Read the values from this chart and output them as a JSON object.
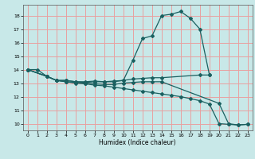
{
  "title": "",
  "xlabel": "Humidex (Indice chaleur)",
  "bg_color": "#c8e8e8",
  "grid_color": "#e8a0a0",
  "line_color": "#1a6060",
  "xlim": [
    -0.5,
    23.5
  ],
  "ylim": [
    9.5,
    18.8
  ],
  "xticks": [
    0,
    1,
    2,
    3,
    4,
    5,
    6,
    7,
    8,
    9,
    10,
    11,
    12,
    13,
    14,
    15,
    16,
    17,
    18,
    19,
    20,
    21,
    22,
    23
  ],
  "yticks": [
    10,
    11,
    12,
    13,
    14,
    15,
    16,
    17,
    18
  ],
  "series": [
    {
      "x": [
        0,
        1,
        2,
        3,
        4,
        5,
        6,
        7,
        8,
        9,
        10,
        11,
        12,
        13,
        14,
        18,
        19
      ],
      "y": [
        14.0,
        14.0,
        13.5,
        13.2,
        13.2,
        13.1,
        13.1,
        13.15,
        13.1,
        13.15,
        13.2,
        13.3,
        13.35,
        13.4,
        13.4,
        13.6,
        13.6
      ]
    },
    {
      "x": [
        0,
        2,
        3,
        4,
        5,
        6,
        7,
        8,
        9,
        10,
        11,
        12,
        13,
        14,
        15,
        16,
        17,
        18,
        19
      ],
      "y": [
        14.0,
        13.5,
        13.2,
        13.2,
        13.1,
        13.05,
        13.1,
        13.1,
        13.1,
        13.2,
        14.7,
        16.3,
        16.5,
        18.0,
        18.1,
        18.3,
        17.8,
        17.0,
        13.6
      ]
    },
    {
      "x": [
        0,
        2,
        3,
        4,
        5,
        6,
        7,
        8,
        9,
        10,
        11,
        12,
        13,
        14,
        15,
        16,
        17,
        18,
        19,
        20,
        21,
        22,
        23
      ],
      "y": [
        14.0,
        13.5,
        13.2,
        13.1,
        13.0,
        12.95,
        12.85,
        12.8,
        12.7,
        12.6,
        12.5,
        12.4,
        12.3,
        12.2,
        12.1,
        12.0,
        11.85,
        11.7,
        11.45,
        10.0,
        9.95,
        9.9,
        9.95
      ]
    },
    {
      "x": [
        0,
        2,
        3,
        4,
        5,
        6,
        7,
        8,
        9,
        10,
        11,
        12,
        13,
        14,
        20,
        21,
        22,
        23
      ],
      "y": [
        14.0,
        13.5,
        13.2,
        13.1,
        13.05,
        13.0,
        12.95,
        12.9,
        12.9,
        13.0,
        13.05,
        13.1,
        13.1,
        13.1,
        11.5,
        10.0,
        9.9,
        9.95
      ]
    }
  ]
}
